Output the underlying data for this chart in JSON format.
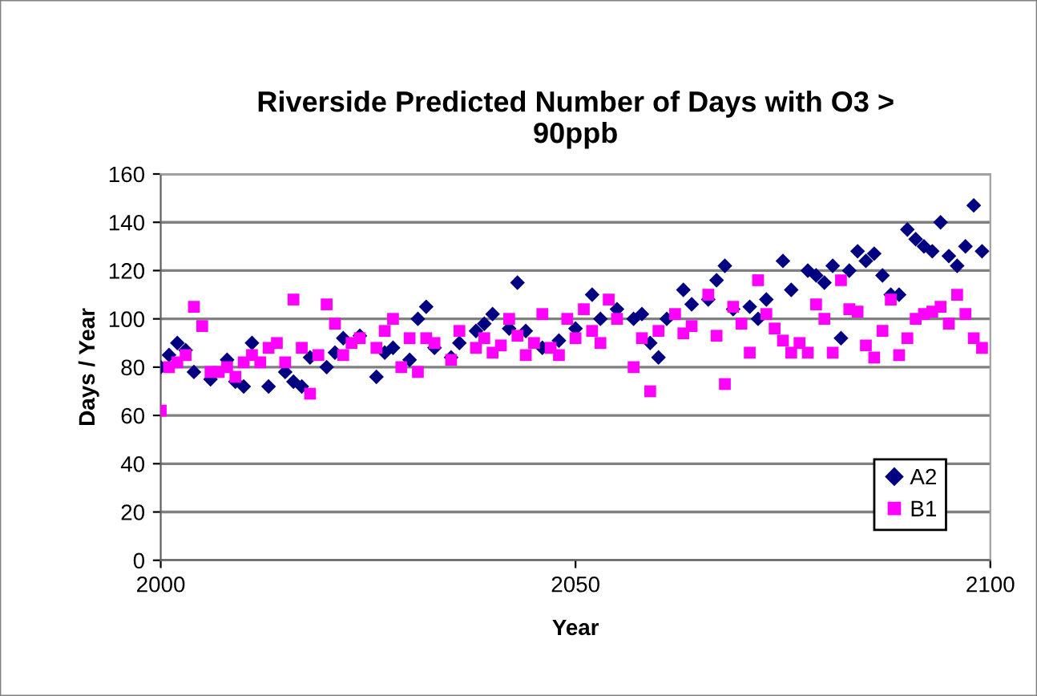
{
  "chart_data": {
    "type": "scatter",
    "title": "Riverside Predicted Number of Days with O3 >\n90ppb",
    "xlabel": "Year",
    "ylabel": "Days / Year",
    "xlim": [
      2000,
      2100
    ],
    "xticks": [
      2000,
      2050,
      2100
    ],
    "ylim": [
      0,
      160
    ],
    "yticks": [
      0,
      20,
      40,
      60,
      80,
      100,
      120,
      140,
      160
    ],
    "grid": "y",
    "legend": "bottom right",
    "series": [
      {
        "name": "A2",
        "color": "#000080",
        "marker": "diamond",
        "x": [
          2000,
          2001,
          2002,
          2003,
          2004,
          2006,
          2008,
          2009,
          2010,
          2011,
          2013,
          2015,
          2016,
          2017,
          2018,
          2020,
          2021,
          2022,
          2024,
          2026,
          2027,
          2028,
          2030,
          2031,
          2032,
          2033,
          2035,
          2036,
          2038,
          2039,
          2040,
          2042,
          2043,
          2044,
          2046,
          2048,
          2050,
          2052,
          2053,
          2055,
          2057,
          2058,
          2059,
          2060,
          2061,
          2063,
          2064,
          2066,
          2067,
          2068,
          2069,
          2071,
          2072,
          2073,
          2075,
          2076,
          2078,
          2079,
          2080,
          2081,
          2082,
          2083,
          2084,
          2085,
          2086,
          2087,
          2088,
          2089,
          2090,
          2091,
          2092,
          2093,
          2094,
          2095,
          2096,
          2097,
          2098,
          2099
        ],
        "values": [
          80,
          85,
          90,
          87,
          78,
          75,
          83,
          74,
          72,
          90,
          72,
          78,
          74,
          72,
          84,
          80,
          86,
          92,
          93,
          76,
          86,
          88,
          83,
          100,
          105,
          88,
          84,
          90,
          95,
          98,
          102,
          96,
          115,
          95,
          88,
          91,
          96,
          110,
          100,
          104,
          100,
          102,
          90,
          84,
          100,
          112,
          106,
          108,
          116,
          122,
          104,
          105,
          100,
          108,
          124,
          112,
          120,
          118,
          115,
          122,
          92,
          120,
          128,
          124,
          127,
          118,
          110,
          110,
          137,
          133,
          130,
          128,
          140,
          126,
          122,
          130,
          147,
          128
        ]
      },
      {
        "name": "B1",
        "color": "#ff00ff",
        "marker": "square",
        "x": [
          2000,
          2001,
          2002,
          2003,
          2004,
          2005,
          2006,
          2007,
          2008,
          2009,
          2010,
          2011,
          2012,
          2013,
          2014,
          2015,
          2016,
          2017,
          2018,
          2019,
          2020,
          2021,
          2022,
          2023,
          2024,
          2026,
          2027,
          2028,
          2029,
          2030,
          2031,
          2032,
          2033,
          2035,
          2036,
          2038,
          2039,
          2040,
          2041,
          2042,
          2043,
          2044,
          2045,
          2046,
          2047,
          2048,
          2049,
          2050,
          2051,
          2052,
          2053,
          2054,
          2055,
          2057,
          2058,
          2059,
          2060,
          2062,
          2063,
          2064,
          2066,
          2067,
          2068,
          2069,
          2070,
          2071,
          2072,
          2073,
          2074,
          2075,
          2076,
          2077,
          2078,
          2079,
          2080,
          2081,
          2082,
          2083,
          2084,
          2085,
          2086,
          2087,
          2088,
          2089,
          2090,
          2091,
          2092,
          2093,
          2094,
          2095,
          2096,
          2097,
          2098,
          2099
        ],
        "values": [
          62,
          80,
          82,
          85,
          105,
          97,
          78,
          78,
          80,
          76,
          82,
          85,
          82,
          88,
          90,
          82,
          108,
          88,
          69,
          85,
          106,
          98,
          85,
          90,
          92,
          88,
          95,
          100,
          80,
          92,
          78,
          92,
          90,
          83,
          95,
          88,
          92,
          86,
          89,
          100,
          93,
          85,
          90,
          102,
          88,
          85,
          100,
          92,
          104,
          95,
          90,
          108,
          100,
          80,
          92,
          70,
          95,
          102,
          94,
          97,
          110,
          93,
          73,
          105,
          98,
          86,
          116,
          102,
          96,
          91,
          86,
          90,
          86,
          106,
          100,
          86,
          116,
          104,
          103,
          89,
          84,
          95,
          108,
          85,
          92,
          100,
          102,
          103,
          105,
          98,
          110,
          102,
          92,
          88
        ]
      }
    ]
  }
}
